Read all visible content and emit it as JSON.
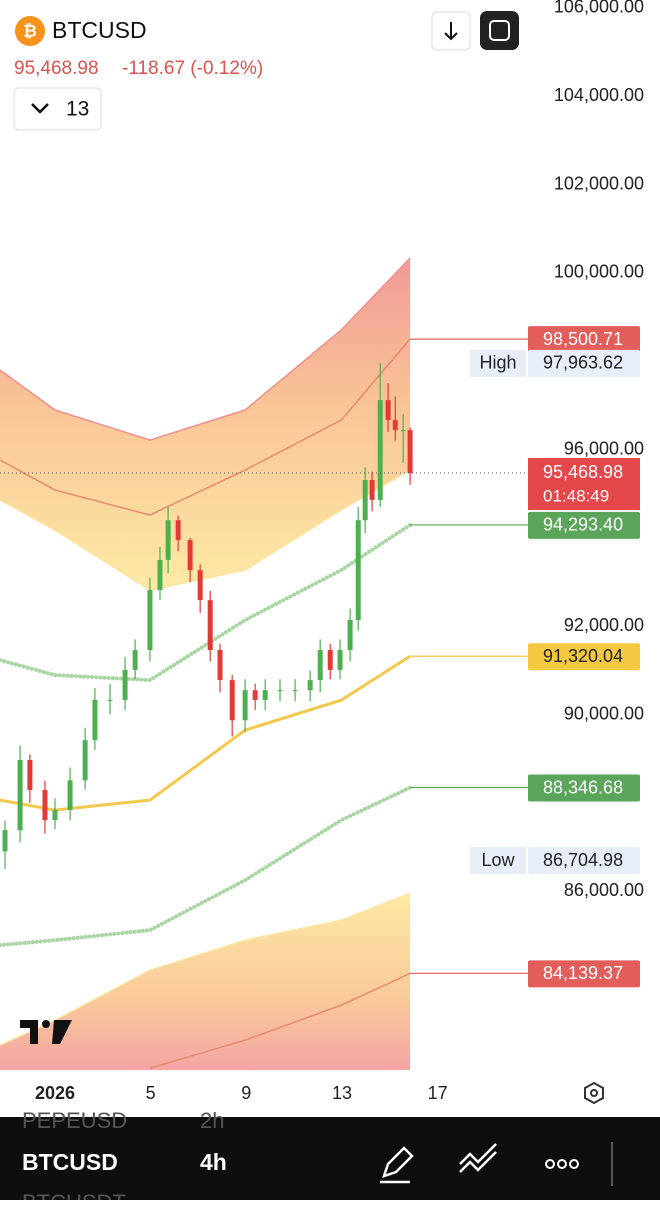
{
  "header": {
    "symbol": "BTCUSD",
    "price": "95,468.98",
    "change": "-118.67 (-0.12%)",
    "interval": "13"
  },
  "chart_data": {
    "type": "candlestick",
    "x": [
      -1.09,
      -0.46,
      -0.05,
      0.58,
      1,
      1.63,
      2.26,
      2.67,
      3.3,
      3.93,
      4.35,
      4.97,
      5.39,
      5.73,
      6.15,
      6.65,
      7.07,
      7.49,
      7.9,
      8.41,
      8.95,
      9.37,
      9.79,
      10.41,
      11.04,
      11.67,
      12.09,
      12.51,
      12.92,
      13.34,
      13.68,
      13.97,
      14.26,
      14.6,
      14.93,
      15.23,
      15.56,
      15.85
    ],
    "open": [
      86900,
      87380,
      88970,
      88290,
      87610,
      87840,
      88510,
      89420,
      90330,
      90330,
      91010,
      91460,
      92820,
      93500,
      94400,
      93950,
      93270,
      92590,
      91460,
      90780,
      89870,
      90550,
      90330,
      90550,
      90550,
      90550,
      90780,
      91460,
      91010,
      91460,
      92140,
      94400,
      95310,
      94860,
      97120,
      96670,
      96440,
      96440
    ],
    "high": [
      87600,
      89300,
      89100,
      88500,
      88100,
      88800,
      89700,
      90600,
      90700,
      91300,
      91700,
      93100,
      93800,
      94700,
      94500,
      94000,
      93400,
      92800,
      91600,
      90900,
      90800,
      90700,
      90800,
      90800,
      90800,
      91000,
      91700,
      91600,
      91700,
      92400,
      94700,
      95600,
      95500,
      97960,
      97500,
      97200,
      96800,
      96500
    ],
    "low": [
      86500,
      87100,
      88000,
      87300,
      87400,
      87600,
      88300,
      89200,
      90000,
      90100,
      90800,
      91200,
      92600,
      93200,
      93700,
      93000,
      92300,
      91200,
      90500,
      89500,
      89600,
      90100,
      90100,
      90300,
      90300,
      90300,
      90500,
      90800,
      90800,
      91200,
      91900,
      94100,
      94600,
      94700,
      96400,
      96200,
      95700,
      95200
    ],
    "close": [
      87380,
      88970,
      88290,
      87610,
      87840,
      88510,
      89420,
      90330,
      90330,
      91010,
      91460,
      92820,
      93500,
      94400,
      93950,
      93270,
      92590,
      91460,
      90780,
      89870,
      90550,
      90330,
      90550,
      90550,
      90550,
      90780,
      91460,
      91010,
      91460,
      92140,
      94400,
      95310,
      94860,
      97120,
      96670,
      96440,
      96440,
      95468.98
    ],
    "up_color": "#4caf50",
    "down_color": "#e53935",
    "xlim": [
      -1.3,
      26.3
    ],
    "xticks": [
      {
        "value": 1,
        "label": "2026"
      },
      5,
      9,
      13,
      17
    ],
    "ylim": [
      81950,
      106180
    ],
    "yticks": [
      {
        "value": 106000,
        "label": "106,000.00"
      },
      {
        "value": 104000,
        "label": "104,000.00"
      },
      {
        "value": 102000,
        "label": "102,000.00"
      },
      {
        "value": 100000,
        "label": "100,000.00"
      },
      {
        "value": 96000,
        "label": "96,000.00"
      },
      {
        "value": 92000,
        "label": "92,000.00"
      },
      {
        "value": 90000,
        "label": "90,000.00"
      },
      {
        "value": 86000,
        "label": "86,000.00"
      }
    ],
    "band_x": [
      -1.3,
      1,
      4.97,
      8.95,
      12.97,
      15.85
    ],
    "bands": [
      {
        "color": "#ef8f8f",
        "style": "solid",
        "values": [
          97801,
          96895,
          96215,
          96895,
          98707,
          100338
        ]
      },
      {
        "color": "#e8896b",
        "style": "solid",
        "values": [
          95762,
          95083,
          94517,
          95536,
          96668,
          98500.71
        ]
      },
      {
        "color": "#fbe3a0",
        "style": "solid",
        "values": [
          94856,
          94177,
          92818,
          93271,
          94630,
          95536
        ]
      },
      {
        "color": "#a8d5a2",
        "style": "dotted",
        "values": [
          91232,
          90893,
          90779,
          92138,
          93271,
          94293.4
        ]
      },
      {
        "color": "#f2c94c",
        "style": "thick",
        "values": [
          88062,
          87835,
          88062,
          89646,
          90326,
          91320.04
        ]
      },
      {
        "color": "#a8d5a2",
        "style": "dotted",
        "values": [
          84777,
          84890,
          85117,
          86249,
          87608,
          88346.68
        ]
      },
      {
        "color": "#fbe6a2",
        "style": "solid",
        "values": [
          82512,
          83078,
          84211,
          84890,
          85343,
          85955
        ]
      },
      {
        "color": "#e8896b",
        "style": "solid",
        "values": [
          null,
          null,
          81990,
          82625,
          83418,
          84139.37
        ]
      }
    ],
    "price_labels": [
      {
        "value": 98500.71,
        "label": "98,500.71",
        "color": "#e35d5b"
      },
      {
        "title": "High",
        "value": 97963.62,
        "label": "97,963.62",
        "color": "#e8eef7"
      },
      {
        "value": 95468.98,
        "label": "95,468.98",
        "color": "#e5474b",
        "countdown": "01:48:49"
      },
      {
        "value": 94293.4,
        "label": "94,293.40",
        "color": "#5aa55a"
      },
      {
        "value": 91320.04,
        "label": "91,320.04",
        "color": "#f5c842"
      },
      {
        "value": 88346.68,
        "label": "88,346.68",
        "color": "#5aa55a"
      },
      {
        "title": "Low",
        "value": 86704.98,
        "label": "86,704.98",
        "color": "#e8eef7"
      },
      {
        "value": 84139.37,
        "label": "84,139.37",
        "color": "#e35d5b"
      }
    ]
  },
  "bottom_bar": {
    "rows": [
      {
        "symbol": "PEPEUSD",
        "interval": "2h"
      },
      {
        "symbol": "BTCUSD",
        "interval": "4h"
      },
      {
        "symbol": "BTCUSDT"
      }
    ]
  }
}
